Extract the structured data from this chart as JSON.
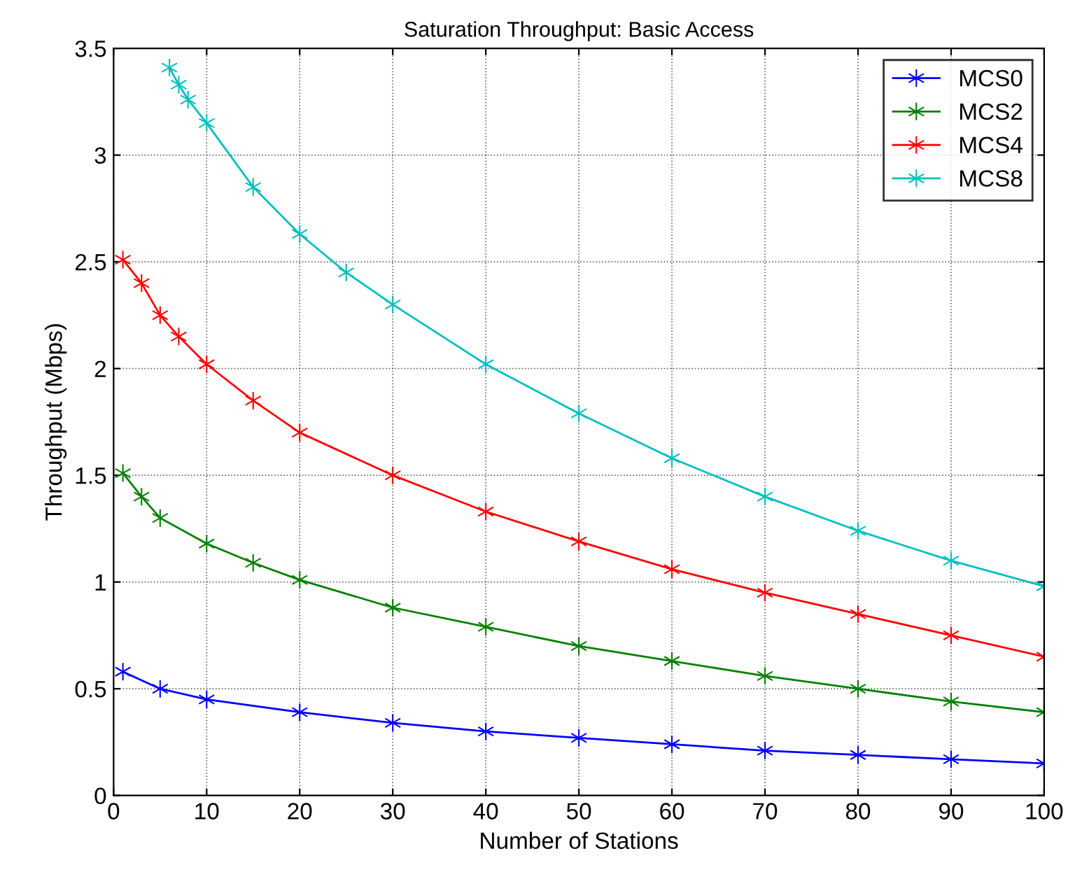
{
  "chart_data": {
    "type": "line",
    "title": "Saturation Throughput: Basic Access",
    "xlabel": "Number of Stations",
    "ylabel": "Throughput (Mbps)",
    "xlim": [
      0,
      100
    ],
    "ylim": [
      0,
      3.5
    ],
    "xticks": [
      0,
      10,
      20,
      30,
      40,
      50,
      60,
      70,
      80,
      90,
      100
    ],
    "yticks": [
      0,
      0.5,
      1,
      1.5,
      2,
      2.5,
      3,
      3.5
    ],
    "grid": true,
    "legend": "top right",
    "marker": "cross",
    "line_style": "solid",
    "series": [
      {
        "name": "MCS0",
        "color": "#0000ff",
        "x": [
          1,
          5,
          10,
          20,
          30,
          40,
          50,
          60,
          70,
          80,
          90,
          100
        ],
        "values": [
          0.58,
          0.5,
          0.45,
          0.39,
          0.34,
          0.3,
          0.27,
          0.24,
          0.21,
          0.19,
          0.17,
          0.15
        ]
      },
      {
        "name": "MCS2",
        "color": "#008000",
        "x": [
          1,
          3,
          5,
          10,
          15,
          20,
          30,
          40,
          50,
          60,
          70,
          80,
          90,
          100
        ],
        "values": [
          1.51,
          1.4,
          1.3,
          1.18,
          1.09,
          1.01,
          0.88,
          0.79,
          0.7,
          0.63,
          0.56,
          0.5,
          0.44,
          0.39
        ]
      },
      {
        "name": "MCS4",
        "color": "#ff0000",
        "x": [
          1,
          3,
          5,
          7,
          10,
          15,
          20,
          30,
          40,
          50,
          60,
          70,
          80,
          90,
          100
        ],
        "values": [
          2.51,
          2.4,
          2.25,
          2.15,
          2.02,
          1.85,
          1.7,
          1.5,
          1.33,
          1.19,
          1.06,
          0.95,
          0.85,
          0.75,
          0.65
        ]
      },
      {
        "name": "MCS8",
        "color": "#00bfbf",
        "x": [
          6,
          7,
          8,
          10,
          15,
          20,
          25,
          30,
          40,
          50,
          60,
          70,
          80,
          90,
          100
        ],
        "values": [
          3.41,
          3.33,
          3.26,
          3.15,
          2.85,
          2.63,
          2.45,
          2.3,
          2.02,
          1.79,
          1.58,
          1.4,
          1.24,
          1.1,
          0.98
        ]
      }
    ]
  }
}
